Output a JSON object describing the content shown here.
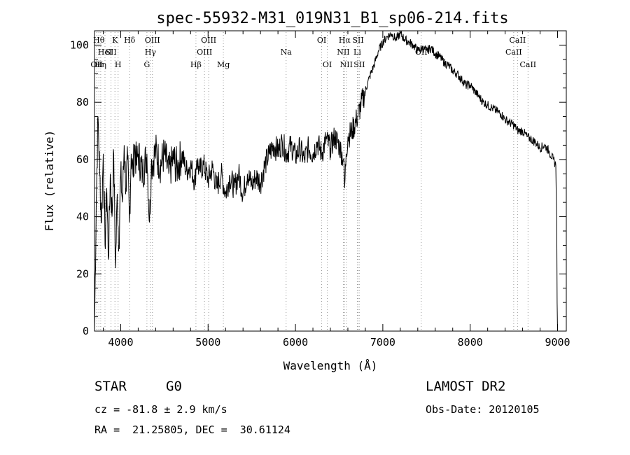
{
  "chart_data": {
    "type": "line",
    "title": "spec-55932-M31_019N31_B1_sp06-214.fits",
    "xlabel": "Wavelength (Å)",
    "ylabel": "Flux (relative)",
    "xlim": [
      3700,
      9100
    ],
    "ylim": [
      0,
      105
    ],
    "xticks": [
      4000,
      5000,
      6000,
      7000,
      8000,
      9000
    ],
    "yticks": [
      0,
      20,
      40,
      60,
      80,
      100
    ],
    "grid": false,
    "series": [
      {
        "x": [
          3700,
          3720,
          3740,
          3760,
          3780,
          3800,
          3820,
          3840,
          3860,
          3880,
          3900,
          3920,
          3940,
          3960,
          3980,
          4000,
          4020,
          4040,
          4060,
          4080,
          4100,
          4120,
          4140,
          4160,
          4180,
          4200,
          4250,
          4300,
          4330,
          4350,
          4400,
          4450,
          4500,
          4550,
          4600,
          4650,
          4700,
          4750,
          4800,
          4850,
          4870,
          4900,
          4950,
          5000,
          5050,
          5100,
          5150,
          5200,
          5250,
          5300,
          5350,
          5400,
          5450,
          5500,
          5550,
          5600,
          5650,
          5700,
          5750,
          5800,
          5850,
          5900,
          5950,
          6000,
          6050,
          6100,
          6150,
          6200,
          6250,
          6300,
          6350,
          6400,
          6450,
          6500,
          6550,
          6563,
          6580,
          6600,
          6650,
          6700,
          6750,
          6800,
          6850,
          6900,
          6950,
          7000,
          7050,
          7100,
          7150,
          7200,
          7250,
          7300,
          7350,
          7400,
          7450,
          7500,
          7550,
          7600,
          7650,
          7700,
          7750,
          7800,
          7850,
          7900,
          7950,
          8000,
          8050,
          8100,
          8150,
          8200,
          8250,
          8300,
          8350,
          8400,
          8450,
          8500,
          8550,
          8600,
          8650,
          8700,
          8750,
          8800,
          8850,
          8900,
          8950,
          8980,
          8990,
          8995,
          9000
        ],
        "y": [
          0,
          45,
          75,
          55,
          38,
          62,
          30,
          50,
          25,
          55,
          40,
          62,
          22,
          48,
          30,
          55,
          45,
          65,
          50,
          60,
          38,
          62,
          55,
          65,
          58,
          62,
          55,
          62,
          38,
          58,
          63,
          58,
          62,
          55,
          60,
          57,
          62,
          56,
          58,
          52,
          60,
          56,
          58,
          53,
          57,
          50,
          55,
          48,
          54,
          50,
          55,
          48,
          55,
          51,
          54,
          52,
          58,
          62,
          65,
          63,
          66,
          62,
          65,
          61,
          64,
          60,
          64,
          62,
          66,
          62,
          67,
          64,
          68,
          65,
          60,
          50,
          62,
          68,
          70,
          74,
          79,
          84,
          89,
          93,
          98,
          101,
          103,
          104,
          102,
          104,
          102,
          101,
          100,
          98,
          99,
          98,
          99,
          97,
          96,
          94,
          93,
          91,
          90,
          88,
          86,
          86,
          84,
          82,
          80,
          79,
          78,
          77,
          76,
          74,
          73,
          72,
          70,
          70,
          68,
          67,
          66,
          64,
          65,
          63,
          60,
          58,
          40,
          10,
          0
        ]
      }
    ],
    "line_markers": [
      {
        "w": 3726,
        "label": "OII",
        "row": 3
      },
      {
        "w": 3750,
        "label": "Hθ",
        "row": 1
      },
      {
        "w": 3771,
        "label": "Hη",
        "row": 3
      },
      {
        "w": 3820,
        "label": "HeI",
        "row": 2
      },
      {
        "w": 3889,
        "label": "SII",
        "row": 2
      },
      {
        "w": 3934,
        "label": "K",
        "row": 1
      },
      {
        "w": 3970,
        "label": "H",
        "row": 3
      },
      {
        "w": 4102,
        "label": "Hδ",
        "row": 1
      },
      {
        "w": 4300,
        "label": "G",
        "row": 3
      },
      {
        "w": 4340,
        "label": "Hγ",
        "row": 2
      },
      {
        "w": 4363,
        "label": "OIII",
        "row": 1
      },
      {
        "w": 4861,
        "label": "Hβ",
        "row": 3
      },
      {
        "w": 4959,
        "label": "OIII",
        "row": 2
      },
      {
        "w": 5007,
        "label": "OIII",
        "row": 1
      },
      {
        "w": 5175,
        "label": "Mg",
        "row": 3
      },
      {
        "w": 5893,
        "label": "Na",
        "row": 2
      },
      {
        "w": 6300,
        "label": "OI",
        "row": 1
      },
      {
        "w": 6364,
        "label": "OI",
        "row": 3
      },
      {
        "w": 6548,
        "label": "NII",
        "row": 2
      },
      {
        "w": 6563,
        "label": "Hα",
        "row": 1
      },
      {
        "w": 6583,
        "label": "NII",
        "row": 3
      },
      {
        "w": 6708,
        "label": "Li",
        "row": 2
      },
      {
        "w": 6717,
        "label": "SII",
        "row": 1
      },
      {
        "w": 6731,
        "label": "SII",
        "row": 3
      },
      {
        "w": 7440,
        "label": "OII",
        "row": 2
      },
      {
        "w": 8498,
        "label": "CaII",
        "row": 2
      },
      {
        "w": 8542,
        "label": "CaII",
        "row": 1
      },
      {
        "w": 8662,
        "label": "CaII",
        "row": 3
      }
    ]
  },
  "info": {
    "class_label": "STAR",
    "subclass_label": "G0",
    "survey": "LAMOST DR2",
    "cz": "cz = -81.8 ± 2.9 km/s",
    "obs_date": "Obs-Date: 20120105",
    "coords": "RA =  21.25805, DEC =  30.61124"
  }
}
